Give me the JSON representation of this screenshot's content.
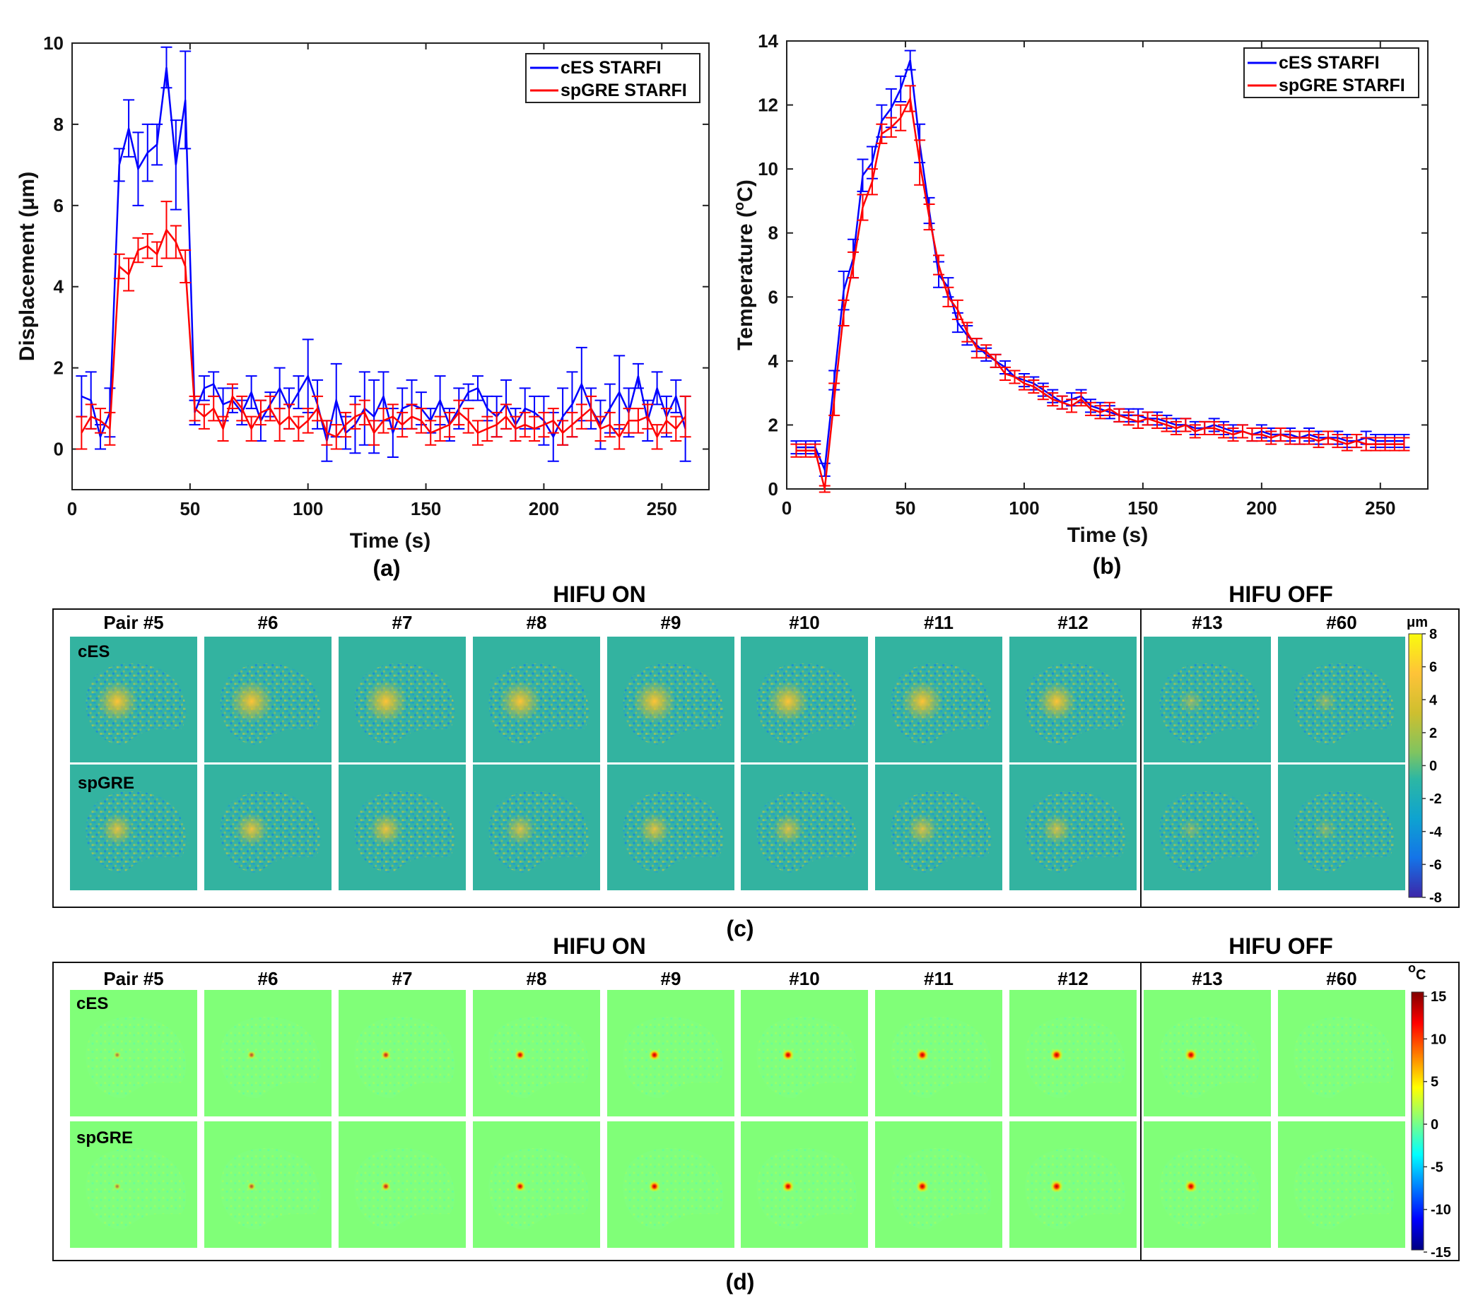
{
  "chart_data": [
    {
      "id": "a",
      "type": "line",
      "panel_label": "(a)",
      "xlabel": "Time (s)",
      "ylabel": "Displacement (μm)",
      "xlim": [
        0,
        270
      ],
      "ylim": [
        -1,
        10
      ],
      "xticks": [
        "0",
        "50",
        "100",
        "150",
        "200",
        "250"
      ],
      "yticks": [
        "0",
        "2",
        "4",
        "6",
        "8",
        "10"
      ],
      "legend_position": "top-right",
      "x": [
        4,
        8,
        12,
        16,
        20,
        24,
        28,
        32,
        36,
        40,
        44,
        48,
        52,
        56,
        60,
        64,
        68,
        72,
        76,
        80,
        84,
        88,
        92,
        96,
        100,
        104,
        108,
        112,
        116,
        120,
        124,
        128,
        132,
        136,
        140,
        144,
        148,
        152,
        156,
        160,
        164,
        168,
        172,
        176,
        180,
        184,
        188,
        192,
        196,
        200,
        204,
        208,
        212,
        216,
        220,
        224,
        228,
        232,
        236,
        240,
        244,
        248,
        252,
        256,
        260
      ],
      "series": [
        {
          "name": "cES STARFI",
          "color": "#0000ff",
          "values": [
            1.3,
            1.2,
            0.3,
            0.9,
            7.0,
            7.9,
            6.9,
            7.3,
            7.5,
            9.4,
            7.0,
            8.6,
            0.9,
            1.5,
            1.6,
            1.1,
            1.2,
            0.9,
            1.4,
            0.7,
            1.1,
            1.5,
            1.0,
            1.4,
            1.8,
            1.1,
            0.2,
            1.2,
            0.4,
            0.6,
            1.0,
            0.8,
            1.3,
            0.4,
            1.0,
            1.1,
            1.0,
            0.7,
            1.2,
            0.6,
            1.0,
            1.4,
            1.5,
            1.0,
            0.8,
            1.1,
            0.6,
            1.0,
            0.9,
            0.7,
            0.3,
            0.8,
            1.1,
            1.6,
            1.0,
            0.6,
            1.0,
            1.4,
            0.9,
            1.8,
            0.7,
            1.5,
            0.8,
            1.3,
            0.5
          ],
          "errors": [
            0.5,
            0.7,
            0.3,
            0.6,
            0.4,
            0.7,
            0.9,
            0.7,
            0.5,
            0.5,
            1.1,
            1.2,
            0.3,
            0.3,
            0.3,
            0.4,
            0.3,
            0.3,
            0.4,
            0.5,
            0.3,
            0.5,
            0.5,
            0.4,
            0.9,
            0.6,
            0.5,
            0.9,
            0.4,
            0.7,
            0.9,
            0.9,
            0.6,
            0.6,
            0.5,
            0.6,
            0.4,
            0.3,
            0.6,
            0.4,
            0.5,
            0.2,
            0.3,
            0.3,
            0.5,
            0.6,
            0.4,
            0.5,
            0.4,
            0.6,
            0.6,
            0.7,
            0.8,
            0.9,
            0.5,
            0.6,
            0.6,
            0.9,
            0.6,
            0.3,
            0.5,
            0.4,
            0.5,
            0.4,
            0.8
          ]
        },
        {
          "name": "spGRE STARFI",
          "color": "#ff0000",
          "values": [
            0.4,
            0.8,
            0.7,
            0.5,
            4.5,
            4.3,
            4.9,
            5.0,
            4.8,
            5.4,
            5.1,
            4.5,
            1.0,
            0.8,
            1.0,
            0.5,
            1.3,
            1.0,
            0.5,
            0.9,
            1.0,
            0.6,
            0.8,
            0.5,
            0.7,
            1.0,
            0.4,
            0.3,
            0.6,
            0.8,
            0.9,
            0.4,
            0.7,
            0.8,
            0.6,
            0.8,
            0.7,
            0.4,
            0.5,
            0.6,
            0.9,
            0.7,
            0.4,
            0.5,
            0.6,
            0.8,
            0.5,
            0.6,
            0.5,
            0.6,
            0.7,
            0.4,
            0.6,
            0.8,
            1.0,
            0.5,
            0.6,
            0.3,
            0.7,
            0.7,
            0.8,
            0.3,
            0.7,
            0.5,
            0.8
          ],
          "errors": [
            0.4,
            0.3,
            0.3,
            0.4,
            0.3,
            0.4,
            0.3,
            0.3,
            0.3,
            0.7,
            0.4,
            0.4,
            0.3,
            0.3,
            0.3,
            0.3,
            0.3,
            0.3,
            0.3,
            0.3,
            0.3,
            0.4,
            0.3,
            0.3,
            0.3,
            0.3,
            0.3,
            0.3,
            0.3,
            0.3,
            0.3,
            0.3,
            0.3,
            0.3,
            0.3,
            0.3,
            0.3,
            0.3,
            0.3,
            0.3,
            0.3,
            0.3,
            0.3,
            0.3,
            0.3,
            0.3,
            0.3,
            0.3,
            0.3,
            0.3,
            0.3,
            0.3,
            0.3,
            0.3,
            0.3,
            0.3,
            0.3,
            0.3,
            0.3,
            0.3,
            0.3,
            0.3,
            0.3,
            0.3,
            0.5
          ]
        }
      ]
    },
    {
      "id": "b",
      "type": "line",
      "panel_label": "(b)",
      "xlabel": "Time (s)",
      "ylabel_main": "Temperature (",
      "ylabel_sup": "o",
      "ylabel_end": "C)",
      "xlim": [
        0,
        270
      ],
      "ylim": [
        0,
        14
      ],
      "xticks": [
        "0",
        "50",
        "100",
        "150",
        "200",
        "250"
      ],
      "yticks": [
        "0",
        "2",
        "4",
        "6",
        "8",
        "10",
        "12",
        "14"
      ],
      "legend_position": "top-right",
      "x": [
        4,
        8,
        12,
        16,
        20,
        24,
        28,
        32,
        36,
        40,
        44,
        48,
        52,
        56,
        60,
        64,
        68,
        72,
        76,
        80,
        84,
        88,
        92,
        96,
        100,
        104,
        108,
        112,
        116,
        120,
        124,
        128,
        132,
        136,
        140,
        144,
        148,
        152,
        156,
        160,
        164,
        168,
        172,
        176,
        180,
        184,
        188,
        192,
        196,
        200,
        204,
        208,
        212,
        216,
        220,
        224,
        228,
        232,
        236,
        240,
        244,
        248,
        252,
        256,
        260
      ],
      "series": [
        {
          "name": "cES STARFI",
          "color": "#0000ff",
          "values": [
            1.3,
            1.3,
            1.3,
            0.6,
            3.4,
            6.2,
            7.2,
            9.8,
            10.2,
            11.5,
            11.9,
            12.5,
            13.4,
            10.8,
            8.7,
            6.7,
            6.3,
            5.2,
            4.8,
            4.5,
            4.2,
            4.0,
            3.8,
            3.5,
            3.4,
            3.3,
            3.1,
            2.9,
            2.7,
            2.8,
            2.9,
            2.6,
            2.5,
            2.4,
            2.3,
            2.3,
            2.3,
            2.2,
            2.2,
            2.1,
            2.0,
            2.0,
            1.9,
            1.9,
            2.0,
            1.9,
            1.8,
            1.8,
            1.7,
            1.8,
            1.7,
            1.7,
            1.7,
            1.6,
            1.7,
            1.6,
            1.6,
            1.6,
            1.5,
            1.5,
            1.6,
            1.5,
            1.5,
            1.5,
            1.5
          ],
          "errors": [
            0.2,
            0.2,
            0.2,
            0.2,
            0.3,
            0.6,
            0.6,
            0.5,
            0.5,
            0.5,
            0.6,
            0.4,
            0.3,
            0.6,
            0.4,
            0.4,
            0.3,
            0.3,
            0.3,
            0.2,
            0.2,
            0.2,
            0.2,
            0.2,
            0.2,
            0.2,
            0.2,
            0.2,
            0.2,
            0.2,
            0.2,
            0.2,
            0.2,
            0.2,
            0.2,
            0.2,
            0.2,
            0.2,
            0.2,
            0.2,
            0.2,
            0.2,
            0.2,
            0.2,
            0.2,
            0.2,
            0.2,
            0.2,
            0.2,
            0.2,
            0.2,
            0.2,
            0.2,
            0.2,
            0.2,
            0.2,
            0.2,
            0.2,
            0.2,
            0.2,
            0.2,
            0.2,
            0.2,
            0.2,
            0.2
          ]
        },
        {
          "name": "spGRE STARFI",
          "color": "#ff0000",
          "values": [
            1.2,
            1.2,
            1.2,
            0.0,
            2.8,
            5.5,
            7.0,
            8.8,
            9.6,
            11.1,
            11.3,
            11.6,
            12.2,
            10.2,
            8.5,
            7.0,
            6.0,
            5.6,
            4.9,
            4.4,
            4.3,
            4.0,
            3.6,
            3.5,
            3.3,
            3.2,
            3.0,
            2.8,
            2.7,
            2.6,
            2.8,
            2.5,
            2.4,
            2.5,
            2.3,
            2.2,
            2.1,
            2.2,
            2.1,
            2.0,
            1.9,
            2.0,
            1.8,
            1.9,
            1.9,
            1.8,
            1.7,
            1.8,
            1.7,
            1.7,
            1.6,
            1.7,
            1.6,
            1.6,
            1.6,
            1.5,
            1.6,
            1.5,
            1.4,
            1.5,
            1.4,
            1.4,
            1.4,
            1.4,
            1.4
          ],
          "errors": [
            0.2,
            0.2,
            0.2,
            0.1,
            0.5,
            0.4,
            0.4,
            0.4,
            0.4,
            0.3,
            0.3,
            0.4,
            0.4,
            0.7,
            0.4,
            0.3,
            0.3,
            0.3,
            0.3,
            0.3,
            0.2,
            0.2,
            0.2,
            0.2,
            0.2,
            0.2,
            0.2,
            0.2,
            0.2,
            0.2,
            0.2,
            0.2,
            0.2,
            0.2,
            0.2,
            0.2,
            0.2,
            0.2,
            0.2,
            0.2,
            0.2,
            0.2,
            0.2,
            0.2,
            0.2,
            0.2,
            0.2,
            0.2,
            0.2,
            0.2,
            0.2,
            0.2,
            0.2,
            0.2,
            0.2,
            0.2,
            0.2,
            0.2,
            0.2,
            0.2,
            0.2,
            0.2,
            0.2,
            0.2,
            0.2
          ]
        }
      ]
    },
    {
      "id": "c",
      "type": "heatmap",
      "panel_label": "(c)",
      "header_on": "HIFU ON",
      "header_off": "HIFU OFF",
      "columns": [
        "Pair #5",
        "#6",
        "#7",
        "#8",
        "#9",
        "#10",
        "#11",
        "#12",
        "#13",
        "#60"
      ],
      "rows": [
        "cES",
        "spGRE"
      ],
      "colorbar_unit": "μm",
      "colorbar_ticks": [
        "8",
        "6",
        "4",
        "2",
        "0",
        "-2",
        "-4",
        "-6",
        "-8"
      ],
      "colorbar_range": [
        -8,
        8
      ],
      "background_color": "#33b3a0",
      "hotspot_intensity": [
        [
          0.9,
          1.0,
          1.0,
          0.9,
          1.0,
          0.9,
          0.9,
          0.8,
          0.15,
          0.1
        ],
        [
          0.5,
          0.55,
          0.55,
          0.45,
          0.5,
          0.45,
          0.45,
          0.4,
          0.05,
          0.05
        ]
      ]
    },
    {
      "id": "d",
      "type": "heatmap",
      "panel_label": "(d)",
      "header_on": "HIFU ON",
      "header_off": "HIFU OFF",
      "columns": [
        "Pair #5",
        "#6",
        "#7",
        "#8",
        "#9",
        "#10",
        "#11",
        "#12",
        "#13",
        "#60"
      ],
      "rows": [
        "cES",
        "spGRE"
      ],
      "colorbar_unit_sup": "o",
      "colorbar_unit": "C",
      "colorbar_ticks": [
        "15",
        "10",
        "5",
        "0",
        "-5",
        "-10",
        "-15"
      ],
      "colorbar_range": [
        -15,
        15
      ],
      "background_color": "#80ff78",
      "hotspot_intensity": [
        [
          0.15,
          0.3,
          0.45,
          0.6,
          0.7,
          0.75,
          0.85,
          0.9,
          0.85,
          0.0
        ],
        [
          0.15,
          0.3,
          0.45,
          0.6,
          0.7,
          0.75,
          0.85,
          0.9,
          0.85,
          0.0
        ]
      ]
    }
  ]
}
